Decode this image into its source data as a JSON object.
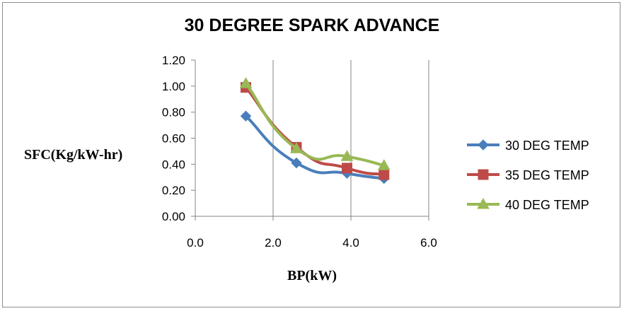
{
  "chart_data": {
    "type": "line",
    "title": "30 DEGREE SPARK ADVANCE",
    "xlabel": "BP(kW)",
    "ylabel": "SFC(Kg/kW-hr)",
    "xlim": [
      0,
      6
    ],
    "ylim": [
      0,
      1.2
    ],
    "x_ticks": [
      "0.0",
      "2.0",
      "4.0",
      "6.0"
    ],
    "y_ticks": [
      "0.00",
      "0.20",
      "0.40",
      "0.60",
      "0.80",
      "1.00",
      "1.20"
    ],
    "grid": "vertical",
    "legend_position": "right",
    "series": [
      {
        "name": "30 DEG TEMP",
        "color": "#4a7ebb",
        "marker": "diamond",
        "points": [
          [
            1.3,
            0.77
          ],
          [
            2.6,
            0.41
          ],
          [
            3.9,
            0.33
          ],
          [
            4.85,
            0.29
          ]
        ]
      },
      {
        "name": "35 DEG TEMP",
        "color": "#be4b48",
        "marker": "square",
        "points": [
          [
            1.3,
            0.99
          ],
          [
            2.6,
            0.53
          ],
          [
            3.9,
            0.37
          ],
          [
            4.85,
            0.32
          ]
        ]
      },
      {
        "name": "40 DEG TEMP",
        "color": "#98b954",
        "marker": "triangle",
        "points": [
          [
            1.3,
            1.02
          ],
          [
            2.6,
            0.52
          ],
          [
            3.9,
            0.46
          ],
          [
            4.85,
            0.39
          ]
        ]
      }
    ]
  }
}
